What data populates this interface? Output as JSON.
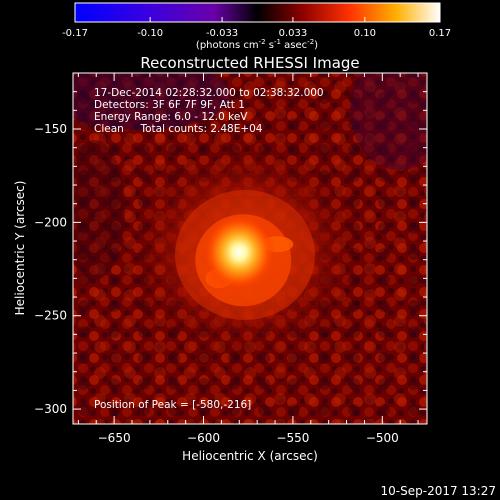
{
  "colorbar": {
    "ticks": [
      "-0.17",
      "-0.10",
      "-0.033",
      "0.033",
      "0.10",
      "0.17"
    ],
    "tick_values": [
      -0.17,
      -0.1,
      -0.033,
      0.033,
      0.1,
      0.17
    ],
    "range": [
      -0.17,
      0.17
    ],
    "units_html": "(photons cm<tspan baseline-shift='super' font-size='7'>-2</tspan> s<tspan baseline-shift='super' font-size='7'>-1</tspan> asec<tspan baseline-shift='super' font-size='7'>-2</tspan>)",
    "units": "(photons cm-2 s-1 asec-2)"
  },
  "chart_data": {
    "type": "heatmap",
    "title": "Reconstructed RHESSI Image",
    "xlabel": "Heliocentric X (arcsec)",
    "ylabel": "Heliocentric Y (arcsec)",
    "xlim": [
      -673,
      -475
    ],
    "ylim": [
      -308,
      -120
    ],
    "xticks": [
      -650,
      -600,
      -550,
      -500
    ],
    "yticks": [
      -150,
      -200,
      -250,
      -300
    ],
    "peak": [
      -580,
      -216
    ],
    "colormap": "hot-inverse (blue-purple for negative, red-yellow-white for positive)",
    "colorbar_range": [
      -0.17,
      0.17
    ],
    "annotations": [
      "17-Dec-2014 02:28:32.000 to 02:38:32.000",
      "Detectors: 3F 6F 7F 9F, Att 1",
      "Energy Range: 6.0 - 12.0 keV",
      "Clean     Total counts: 2.48E+04"
    ],
    "footer_annotation": "Position of Peak = [-580,-216]"
  },
  "timestamp": "10-Sep-2017 13:27"
}
